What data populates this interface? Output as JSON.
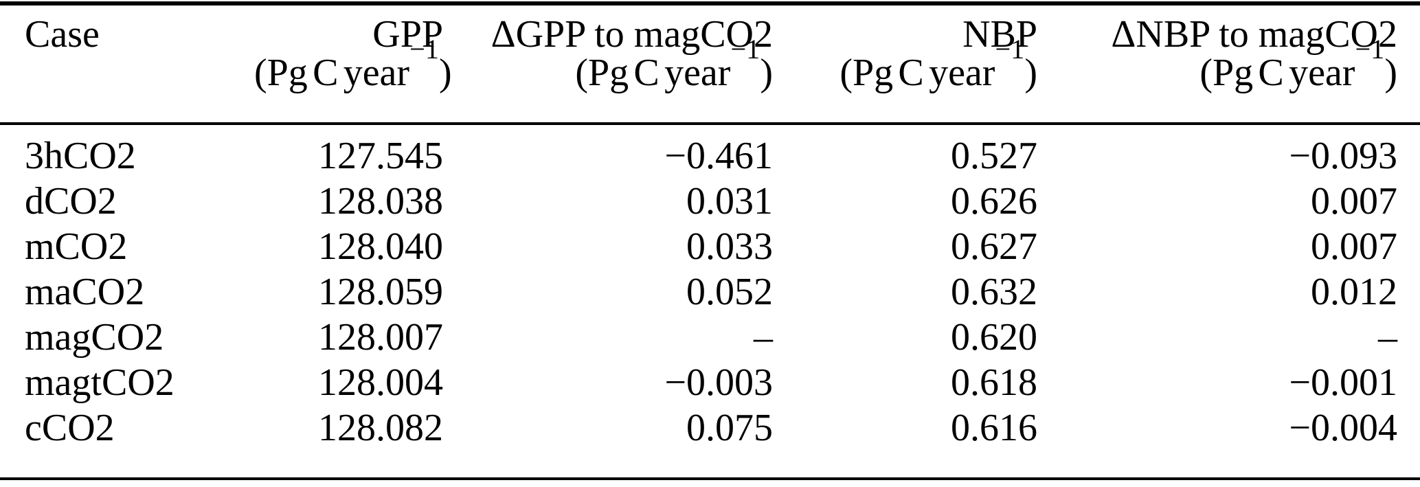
{
  "document": {
    "kind": "journal-paper-table",
    "background_color": "#ffffff",
    "text_color": "#000000",
    "rule_color": "#000000"
  },
  "table": {
    "columns": [
      {
        "id": "case",
        "label": "Case",
        "unit": "",
        "align": "left"
      },
      {
        "id": "gpp",
        "label": "GPP",
        "unit": "(Pg C year^{−1})",
        "align": "right"
      },
      {
        "id": "dgpp-to-magco2",
        "label": "ΔGPP to magCO2",
        "unit": "(Pg C year^{−1})",
        "align": "right"
      },
      {
        "id": "nbp",
        "label": "NBP",
        "unit": "(Pg C year^{−1})",
        "align": "right"
      },
      {
        "id": "dnbp-to-magco2",
        "label": "ΔNBP to magCO2",
        "unit": "(Pg C year^{−1})",
        "align": "right"
      }
    ],
    "rows": [
      [
        "3hCO2",
        "127.545",
        "−0.461",
        "0.527",
        "−0.093"
      ],
      [
        "dCO2",
        "128.038",
        "0.031",
        "0.626",
        "0.007"
      ],
      [
        "mCO2",
        "128.040",
        "0.033",
        "0.627",
        "0.007"
      ],
      [
        "maCO2",
        "128.059",
        "0.052",
        "0.632",
        "0.012"
      ],
      [
        "magCO2",
        "128.007",
        "–",
        "0.620",
        "–"
      ],
      [
        "magtCO2",
        "128.004",
        "−0.003",
        "0.618",
        "−0.001"
      ],
      [
        "cCO2",
        "128.082",
        "0.075",
        "0.616",
        "−0.004"
      ]
    ],
    "missing_value_marker": "–"
  }
}
